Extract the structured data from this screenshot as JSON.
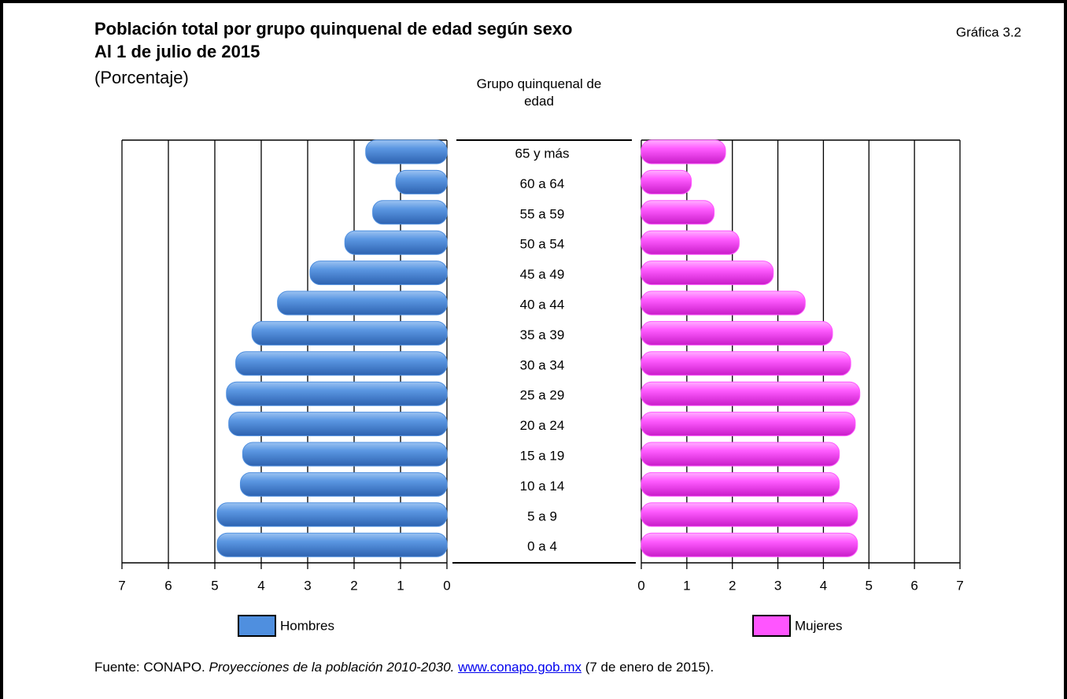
{
  "chart_data": {
    "type": "pyramid",
    "title": "Población total por grupo quinquenal de edad según sexo",
    "subtitle": "Al 1 de julio de 2015",
    "unit": "(Porcentaje)",
    "chart_number": "Gráfica 3.2",
    "category_title": "Grupo quinquenal de edad",
    "categories": [
      "65 y más",
      "60 a 64",
      "55 a 59",
      "50 a 54",
      "45 a 49",
      "40 a 44",
      "35 a 39",
      "30 a 34",
      "25 a 29",
      "20 a 24",
      "15 a 19",
      "10 a 14",
      "5 a 9",
      "0 a 4"
    ],
    "series": [
      {
        "name": "Hombres",
        "color": "#4f8fdf",
        "values": [
          1.75,
          1.1,
          1.6,
          2.2,
          2.95,
          3.65,
          4.2,
          4.55,
          4.75,
          4.7,
          4.4,
          4.45,
          4.95,
          4.95
        ]
      },
      {
        "name": "Mujeres",
        "color": "#ff55ff",
        "values": [
          1.85,
          1.1,
          1.6,
          2.15,
          2.9,
          3.6,
          4.2,
          4.6,
          4.8,
          4.7,
          4.35,
          4.35,
          4.75,
          4.75
        ]
      }
    ],
    "xlim": [
      0,
      7
    ],
    "xticks": [
      0,
      1,
      2,
      3,
      4,
      5,
      6,
      7
    ],
    "grid": true,
    "source": {
      "prefix": "Fuente: CONAPO. ",
      "publication": "Proyecciones de la población 2010-2030.",
      "link": "www.conapo.gob.mx",
      "suffix": " (7 de enero de 2015)."
    }
  }
}
